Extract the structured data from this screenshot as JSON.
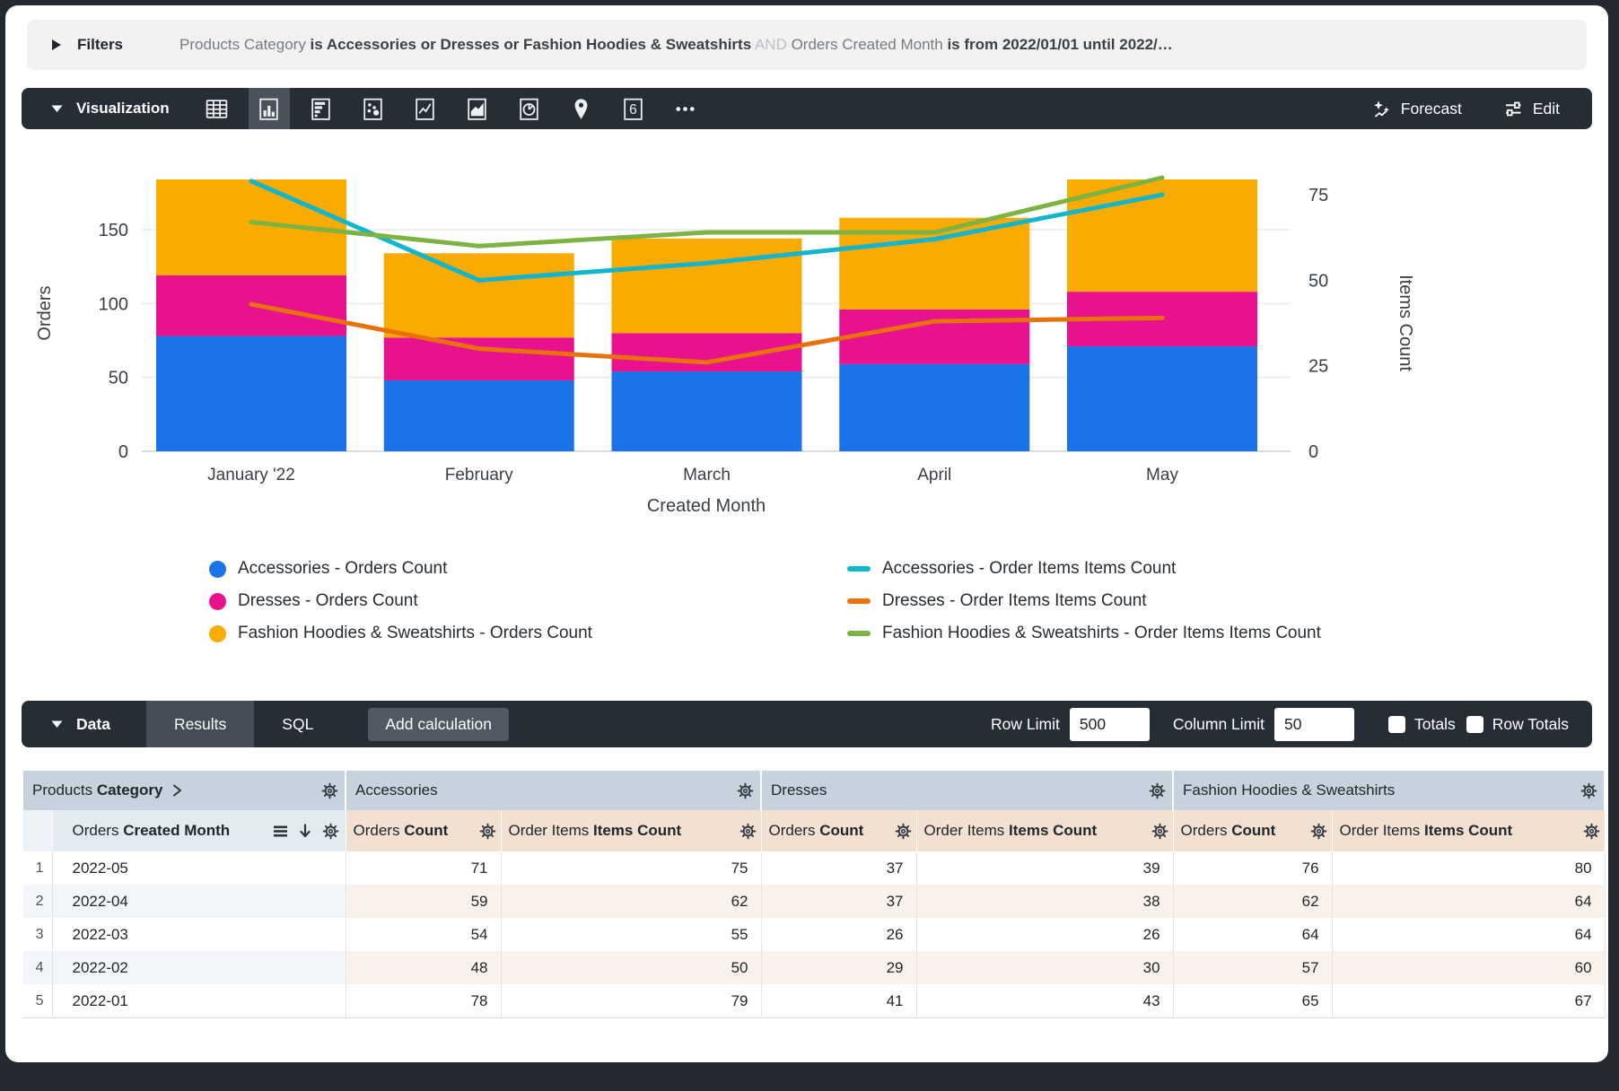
{
  "filters": {
    "label": "Filters",
    "segments": [
      {
        "text": "Products Category ",
        "style": "dim"
      },
      {
        "text": "is Accessories or Dresses or Fashion Hoodies & Sweatshirts",
        "style": "strong"
      },
      {
        "text": " AND ",
        "style": "and"
      },
      {
        "text": "Orders Created Month ",
        "style": "dim"
      },
      {
        "text": "is from 2022/01/01 until 2022/…",
        "style": "strong"
      }
    ]
  },
  "viz": {
    "title": "Visualization",
    "forecast_label": "Forecast",
    "edit_label": "Edit",
    "icons": [
      {
        "name": "table",
        "selected": false
      },
      {
        "name": "column-chart",
        "selected": true
      },
      {
        "name": "bar-chart",
        "selected": false
      },
      {
        "name": "scatter-chart",
        "selected": false
      },
      {
        "name": "line-chart",
        "selected": false
      },
      {
        "name": "area-chart",
        "selected": false
      },
      {
        "name": "pie-chart",
        "selected": false
      },
      {
        "name": "map",
        "selected": false
      },
      {
        "name": "single-value",
        "selected": false
      },
      {
        "name": "more",
        "selected": false
      }
    ]
  },
  "chart_data": {
    "type": "bar-line-combo",
    "categories": [
      "January '22",
      "February",
      "March",
      "April",
      "May"
    ],
    "x_title": "Created Month",
    "left_axis": {
      "title": "Orders",
      "ticks": [
        0,
        50,
        100,
        150
      ],
      "range": [
        0,
        190
      ]
    },
    "right_axis": {
      "title": "Items Count",
      "ticks": [
        0,
        25,
        50,
        75
      ],
      "range": [
        0,
        95
      ]
    },
    "bar_series": [
      {
        "name": "Accessories - Orders Count",
        "color": "#1A73E8",
        "values": [
          78,
          48,
          54,
          59,
          71
        ]
      },
      {
        "name": "Dresses - Orders Count",
        "color": "#E8128F",
        "values": [
          41,
          29,
          26,
          37,
          37
        ]
      },
      {
        "name": "Fashion Hoodies & Sweatshirts - Orders Count",
        "color": "#F9AB00",
        "values": [
          65,
          57,
          64,
          62,
          76
        ]
      }
    ],
    "line_series": [
      {
        "name": "Accessories - Order Items Items Count",
        "color": "#12B5CB",
        "values": [
          79,
          50,
          55,
          62,
          75
        ]
      },
      {
        "name": "Dresses - Order Items Items Count",
        "color": "#E8710A",
        "values": [
          43,
          30,
          26,
          38,
          39
        ]
      },
      {
        "name": "Fashion Hoodies & Sweatshirts - Order Items Items Count",
        "color": "#7CB342",
        "values": [
          67,
          60,
          64,
          64,
          80
        ]
      }
    ],
    "legend_position": "bottom",
    "grid": true
  },
  "data_panel": {
    "title": "Data",
    "tabs": [
      {
        "label": "Results",
        "active": true
      },
      {
        "label": "SQL",
        "active": false
      }
    ],
    "add_calculation_label": "Add calculation",
    "row_limit_label": "Row Limit",
    "row_limit_value": "500",
    "column_limit_label": "Column Limit",
    "column_limit_value": "50",
    "totals_label": "Totals",
    "row_totals_label": "Row Totals"
  },
  "table": {
    "groups": [
      {
        "plain": "Products ",
        "bold": "Category",
        "pivot": true
      },
      {
        "plain": "Accessories",
        "bold": "",
        "pivot": false
      },
      {
        "plain": "Dresses",
        "bold": "",
        "pivot": false
      },
      {
        "plain": "Fashion Hoodies & Sweatshirts",
        "bold": "",
        "pivot": false
      }
    ],
    "dimension_header": {
      "plain": "Orders ",
      "bold": "Created Month"
    },
    "measure_headers": [
      {
        "plain": "Orders ",
        "bold": "Count"
      },
      {
        "plain": "Order Items ",
        "bold": "Items Count"
      }
    ],
    "rows": [
      {
        "n": "1",
        "month": "2022-05",
        "values": [
          71,
          75,
          37,
          39,
          76,
          80
        ]
      },
      {
        "n": "2",
        "month": "2022-04",
        "values": [
          59,
          62,
          37,
          38,
          62,
          64
        ]
      },
      {
        "n": "3",
        "month": "2022-03",
        "values": [
          54,
          55,
          26,
          26,
          64,
          64
        ]
      },
      {
        "n": "4",
        "month": "2022-02",
        "values": [
          48,
          50,
          29,
          30,
          57,
          60
        ]
      },
      {
        "n": "5",
        "month": "2022-01",
        "values": [
          78,
          79,
          41,
          43,
          65,
          67
        ]
      }
    ]
  }
}
